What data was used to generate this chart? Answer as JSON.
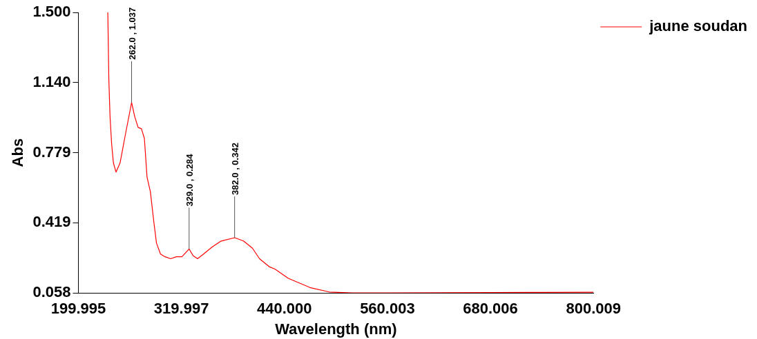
{
  "chart_data": {
    "type": "line",
    "xlabel": "Wavelength (nm)",
    "ylabel": "Abs",
    "series": [
      {
        "name": "jaune soudan",
        "color": "#ff0000",
        "x": [
          234.3,
          235.5,
          236.9,
          238.7,
          240.8,
          243.9,
          248.6,
          253.9,
          262,
          265.6,
          269.6,
          273.5,
          276.9,
          280,
          283.9,
          287.8,
          291,
          295.7,
          301,
          307.5,
          314,
          320.6,
          329,
          333.6,
          338.8,
          345.3,
          355.8,
          366.3,
          382,
          392.4,
          402.8,
          411,
          422.3,
          429,
          444.6,
          469.8,
          492.3,
          520,
          560,
          620,
          680,
          740,
          800
        ],
        "values": [
          1.5,
          1.154,
          0.965,
          0.827,
          0.727,
          0.679,
          0.727,
          0.852,
          1.037,
          0.965,
          0.909,
          0.902,
          0.852,
          0.653,
          0.578,
          0.427,
          0.314,
          0.258,
          0.244,
          0.234,
          0.244,
          0.244,
          0.284,
          0.25,
          0.234,
          0.256,
          0.294,
          0.325,
          0.342,
          0.325,
          0.288,
          0.234,
          0.193,
          0.181,
          0.133,
          0.086,
          0.063,
          0.058,
          0.058,
          0.059,
          0.06,
          0.061,
          0.062
        ]
      }
    ],
    "xlim": [
      199.995,
      800.009
    ],
    "xticks": [
      199.995,
      319.997,
      {
        "value": 440,
        "label": "440.000"
      },
      560.003,
      680.006,
      800.009
    ],
    "ylim": [
      0.058,
      1.5
    ],
    "yticks": [
      0.058,
      0.419,
      0.779,
      {
        "value": 1.14,
        "label": "1.140"
      },
      {
        "value": 1.5,
        "label": "1.500"
      }
    ],
    "annotations": [
      {
        "text": "262.0 , 1.037",
        "x": 262,
        "y": 1.037
      },
      {
        "text": "329.0 , 0.284",
        "x": 329,
        "y": 0.284
      },
      {
        "text": "382.0 , 0.342",
        "x": 382,
        "y": 0.342
      }
    ],
    "grid": false,
    "legend": "top right",
    "marker": "none",
    "line_style": "solid"
  }
}
